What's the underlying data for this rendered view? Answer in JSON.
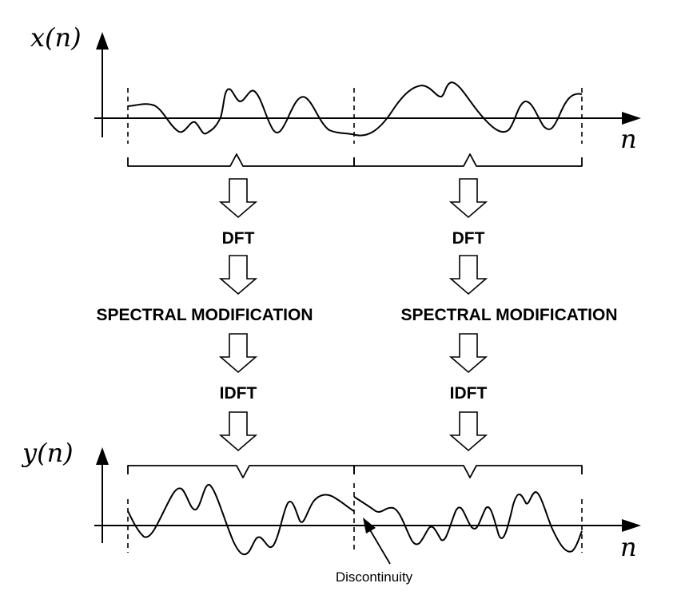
{
  "top_signal": {
    "y_label": "x(n)",
    "x_label": "n"
  },
  "bottom_signal": {
    "y_label": "y(n)",
    "x_label": "n"
  },
  "left_branch": {
    "step1": "DFT",
    "step2": "SPECTRAL MODIFICATION",
    "step3": "IDFT"
  },
  "right_branch": {
    "step1": "DFT",
    "step2": "SPECTRAL MODIFICATION",
    "step3": "IDFT"
  },
  "annotation": {
    "text": "Discontinuity"
  }
}
